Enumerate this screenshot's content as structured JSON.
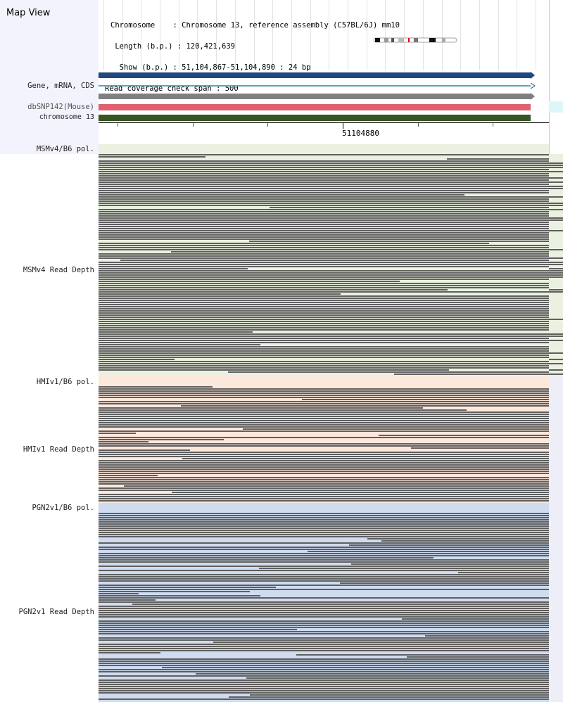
{
  "app": {
    "title": "Map View"
  },
  "info": {
    "chromosome_label": "Chromosome    : ",
    "chromosome_value": "Chromosome 13, reference assembly (C57BL/6J) mm10",
    "length_label": " Length (b.p.) : ",
    "length_value": "120,421,639",
    "show_label": "  Show (b.p.) : ",
    "show_value": "51,104,867-51,104,890 : 24 bp",
    "coverage_label": "Read coverage check span : ",
    "coverage_value": "500"
  },
  "tracks": {
    "gene": "Gene, mRNA, CDS",
    "dbsnp": "dbSNP142(Mouse)",
    "chromosome": "chromosome 13"
  },
  "axis": {
    "coordinate": "51104880"
  },
  "sections": [
    {
      "pol_label": "MSMv4/B6 pol.",
      "depth_label": "MSMv4 Read Depth",
      "bg": "#eaf1e0"
    },
    {
      "pol_label": "HMIv1/B6 pol.",
      "depth_label": "HMIv1 Read Depth",
      "bg": "#fde8dc"
    },
    {
      "pol_label": "PGN2v1/B6 pol.",
      "depth_label": "PGN2v1 Read Depth",
      "bg": "#cfdcf0"
    }
  ],
  "colors": {
    "gene_blue": "#1f497d",
    "mrna_teal": "#5aa5b5",
    "cds_gray": "#808080",
    "dbsnp_red": "#e0606e",
    "chrom_green": "#375623",
    "read_gray": "#5f5f5f"
  }
}
